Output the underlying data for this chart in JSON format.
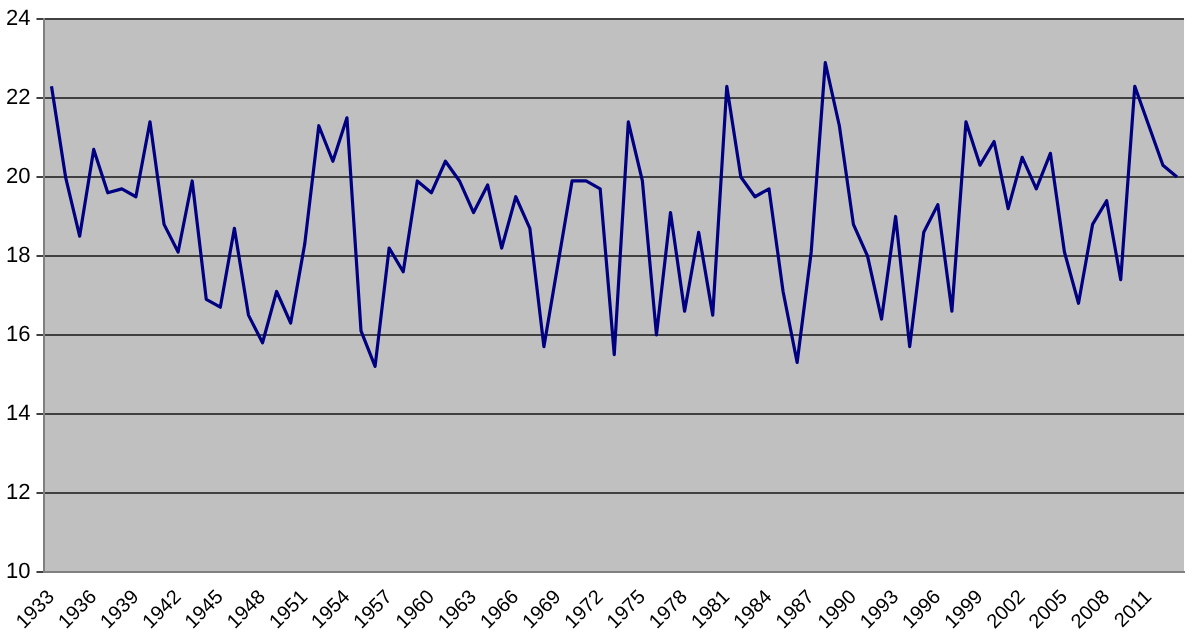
{
  "chart_data": {
    "type": "line",
    "categories": [
      "1933",
      null,
      null,
      "1936",
      null,
      null,
      "1939",
      null,
      null,
      "1942",
      null,
      null,
      "1945",
      null,
      null,
      "1948",
      null,
      null,
      "1951",
      null,
      null,
      "1954",
      null,
      null,
      "1957",
      null,
      null,
      "1960",
      null,
      null,
      "1963",
      null,
      null,
      "1966",
      null,
      null,
      "1969",
      null,
      null,
      "1972",
      null,
      null,
      "1975",
      null,
      null,
      "1978",
      null,
      null,
      "1981",
      null,
      null,
      "1984",
      null,
      null,
      "1987",
      null,
      null,
      "1990",
      null,
      null,
      "1993",
      null,
      null,
      "1996",
      null,
      null,
      "1999",
      null,
      null,
      "2002",
      null,
      null,
      "2005",
      null,
      null,
      "2008",
      null,
      null,
      "2011",
      null,
      null
    ],
    "series": [
      {
        "color": "#000080",
        "values": [
          22.3,
          20.0,
          18.5,
          20.7,
          19.6,
          19.7,
          19.5,
          21.4,
          18.8,
          18.1,
          19.9,
          16.9,
          16.7,
          18.7,
          16.5,
          15.8,
          17.1,
          16.3,
          18.3,
          21.3,
          20.4,
          21.5,
          16.1,
          15.2,
          18.2,
          17.6,
          19.9,
          19.6,
          20.4,
          19.9,
          19.1,
          19.8,
          18.2,
          19.5,
          18.7,
          15.7,
          17.8,
          19.9,
          19.9,
          19.7,
          15.5,
          21.4,
          19.9,
          16.0,
          19.1,
          16.6,
          18.6,
          16.5,
          22.3,
          20.0,
          19.5,
          19.7,
          17.1,
          15.3,
          18.1,
          22.9,
          21.3,
          18.8,
          18.0,
          16.4,
          19.0,
          15.7,
          18.6,
          19.3,
          16.6,
          21.4,
          20.3,
          20.9,
          19.2,
          20.5,
          19.7,
          20.6,
          18.1,
          16.8,
          18.8,
          19.4,
          17.4,
          22.3,
          21.3,
          20.3,
          20.0
        ]
      }
    ],
    "ylim": [
      10,
      24
    ],
    "yticks": [
      10,
      12,
      14,
      16,
      18,
      20,
      22,
      24
    ],
    "grid": "y",
    "marker": "none",
    "line_style": "solid",
    "legend": false
  }
}
